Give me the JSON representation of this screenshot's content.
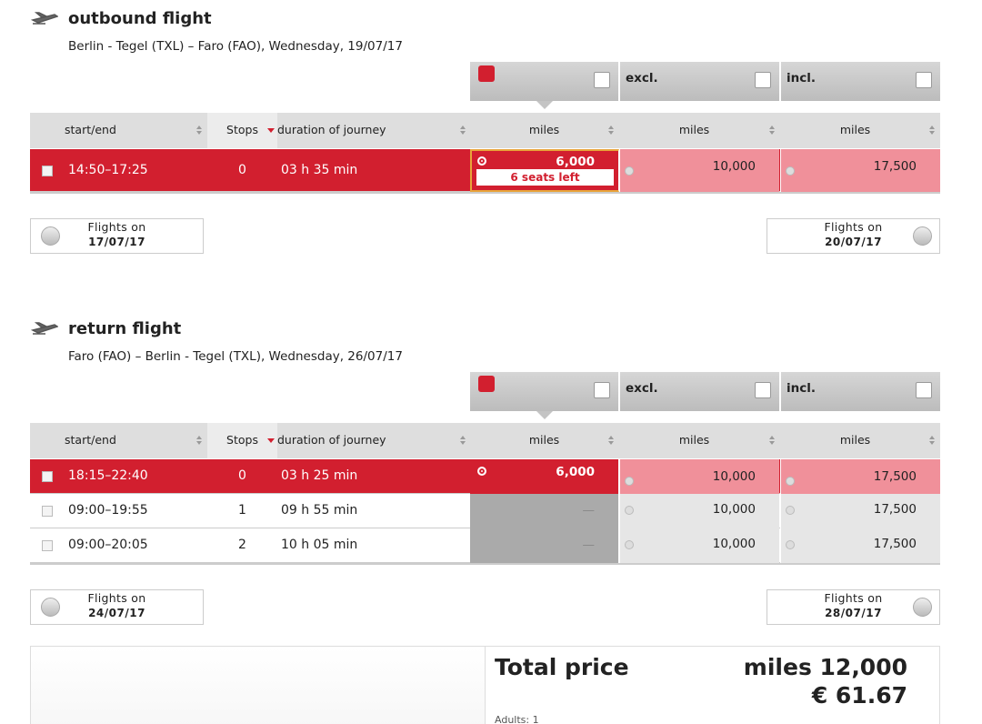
{
  "outbound": {
    "title": "outbound flight",
    "route": "Berlin - Tegel (TXL) – Faro (FAO),  Wednesday, 19/07/17",
    "fare_headers": [
      "excl.",
      "incl."
    ],
    "columns": [
      "start/end",
      "Stops",
      "duration of journey",
      "miles",
      "miles",
      "miles"
    ],
    "rows": [
      {
        "time": "14:50–17:25",
        "stops": "0",
        "duration": "03 h 35 min",
        "fare1": "6,000",
        "seats": "6 seats left",
        "fare2": "10,000",
        "fare3": "17,500"
      }
    ],
    "prev": {
      "label": "Flights on",
      "date": "17/07/17"
    },
    "next": {
      "label": "Flights on",
      "date": "20/07/17"
    }
  },
  "return": {
    "title": "return flight",
    "route": "Faro (FAO) – Berlin - Tegel (TXL),  Wednesday, 26/07/17",
    "fare_headers": [
      "excl.",
      "incl."
    ],
    "columns": [
      "start/end",
      "Stops",
      "duration of journey",
      "miles",
      "miles",
      "miles"
    ],
    "rows": [
      {
        "time": "18:15–22:40",
        "stops": "0",
        "duration": "03 h 25 min",
        "fare1": "6,000",
        "fare2": "10,000",
        "fare3": "17,500"
      },
      {
        "time": "09:00–19:55",
        "stops": "1",
        "duration": "09 h 55 min",
        "fare1": "—",
        "fare2": "10,000",
        "fare3": "17,500"
      },
      {
        "time": "09:00–20:05",
        "stops": "2",
        "duration": "10 h 05 min",
        "fare1": "—",
        "fare2": "10,000",
        "fare3": "17,500"
      }
    ],
    "prev": {
      "label": "Flights on",
      "date": "24/07/17"
    },
    "next": {
      "label": "Flights on",
      "date": "28/07/17"
    }
  },
  "total": {
    "label": "Total price",
    "miles": "miles 12,000",
    "eur": "€ 61.67",
    "adults": "Adults: 1"
  }
}
